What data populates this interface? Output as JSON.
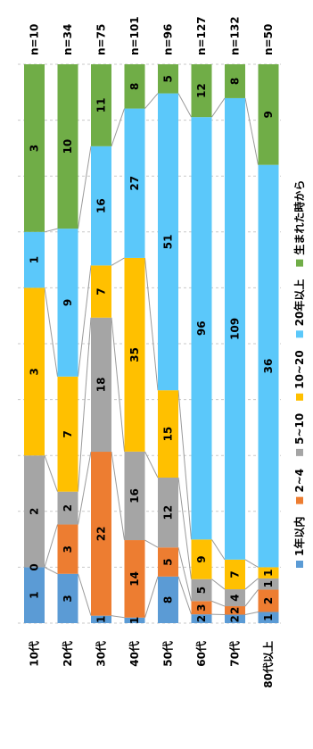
{
  "chart_data": {
    "type": "bar",
    "stacked": "100%",
    "orientation": "rotated",
    "categories": [
      "10代",
      "20代",
      "30代",
      "40代",
      "50代",
      "60代",
      "70代",
      "80代以上"
    ],
    "n_labels": [
      "n=10",
      "n=34",
      "n=75",
      "n=101",
      "n=96",
      "n=127",
      "n=132",
      "n=50"
    ],
    "series": [
      {
        "name": "1年以内",
        "color": "#5b9bd5",
        "values": [
          1,
          3,
          1,
          1,
          8,
          2,
          2,
          1
        ]
      },
      {
        "name": "2~4",
        "color": "#ed7d31",
        "values": [
          0,
          3,
          22,
          14,
          5,
          3,
          2,
          2
        ]
      },
      {
        "name": "5~10",
        "color": "#a5a5a5",
        "values": [
          2,
          2,
          18,
          16,
          12,
          5,
          4,
          1
        ]
      },
      {
        "name": "10~20",
        "color": "#ffc000",
        "values": [
          3,
          7,
          7,
          35,
          15,
          9,
          7,
          1
        ]
      },
      {
        "name": "20年以上",
        "color": "#5bc8fa",
        "values": [
          1,
          9,
          16,
          27,
          51,
          96,
          109,
          36
        ]
      },
      {
        "name": "生まれた時から",
        "color": "#70ad47",
        "values": [
          3,
          10,
          11,
          8,
          5,
          12,
          8,
          9
        ]
      }
    ],
    "legend_position": "bottom",
    "grid": true
  }
}
